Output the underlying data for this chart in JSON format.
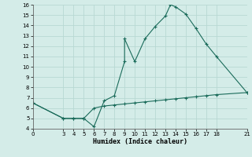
{
  "xlabel": "Humidex (Indice chaleur)",
  "bg_color": "#d4ece8",
  "line_color": "#1a6b5a",
  "grid_color": "#b8d8d3",
  "upper_line": [
    [
      0,
      6.5
    ],
    [
      3,
      5.0
    ],
    [
      4,
      5.0
    ],
    [
      5,
      5.0
    ],
    [
      6,
      4.2
    ],
    [
      7,
      6.7
    ],
    [
      8,
      7.2
    ],
    [
      9,
      10.5
    ],
    [
      9,
      12.7
    ],
    [
      10,
      10.5
    ],
    [
      11,
      12.7
    ],
    [
      12,
      13.9
    ],
    [
      13,
      14.9
    ],
    [
      13.5,
      16.0
    ],
    [
      14,
      15.8
    ],
    [
      15,
      15.1
    ],
    [
      16,
      13.7
    ],
    [
      17,
      12.2
    ],
    [
      18,
      11.0
    ],
    [
      21,
      7.5
    ]
  ],
  "lower_line": [
    [
      0,
      6.5
    ],
    [
      3,
      5.0
    ],
    [
      4,
      5.0
    ],
    [
      5,
      5.0
    ],
    [
      6,
      6.0
    ],
    [
      7,
      6.2
    ],
    [
      8,
      6.3
    ],
    [
      9,
      6.4
    ],
    [
      10,
      6.5
    ],
    [
      11,
      6.6
    ],
    [
      12,
      6.7
    ],
    [
      13,
      6.8
    ],
    [
      14,
      6.9
    ],
    [
      15,
      7.0
    ],
    [
      16,
      7.1
    ],
    [
      17,
      7.2
    ],
    [
      18,
      7.3
    ],
    [
      21,
      7.5
    ]
  ],
  "xlim": [
    0,
    21
  ],
  "ylim": [
    4,
    16
  ],
  "xticks": [
    0,
    3,
    4,
    5,
    6,
    7,
    8,
    9,
    10,
    11,
    12,
    13,
    14,
    15,
    16,
    17,
    18,
    21
  ],
  "yticks": [
    4,
    5,
    6,
    7,
    8,
    9,
    10,
    11,
    12,
    13,
    14,
    15,
    16
  ]
}
